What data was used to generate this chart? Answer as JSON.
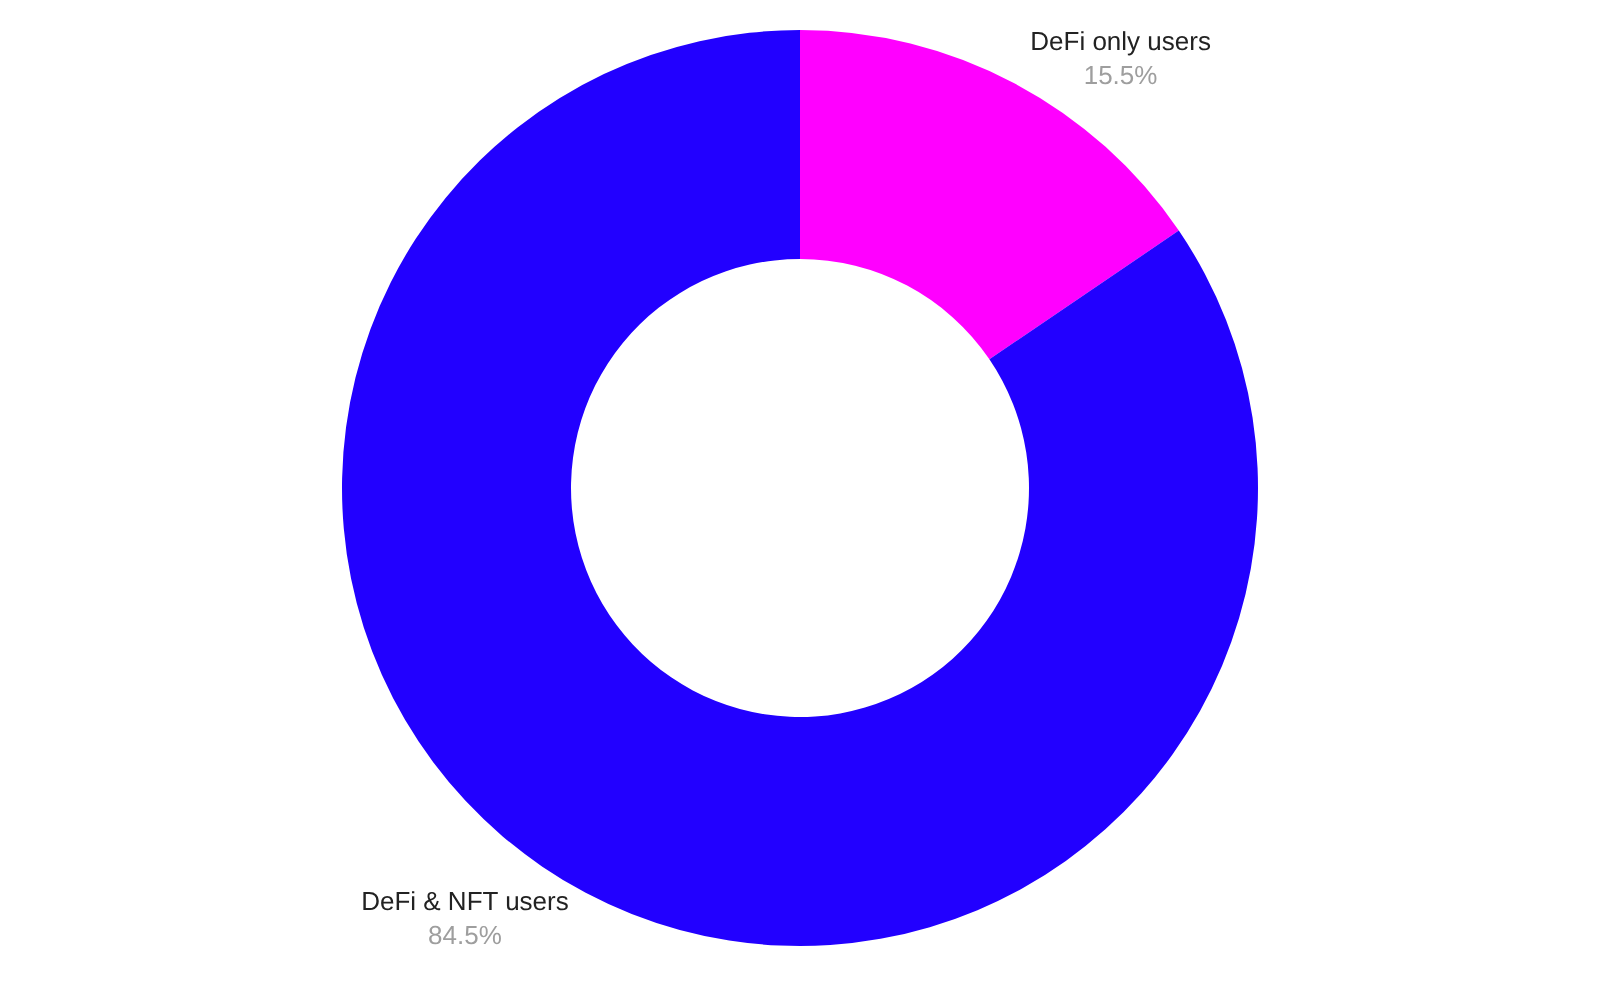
{
  "chart_data": {
    "type": "donut",
    "categories": [
      "DeFi only users",
      "DeFi & NFT users"
    ],
    "values": [
      15.5,
      84.5
    ],
    "colors": [
      "#ff00ff",
      "#2200ff"
    ],
    "value_labels": [
      "15.5%",
      "84.5%"
    ]
  }
}
